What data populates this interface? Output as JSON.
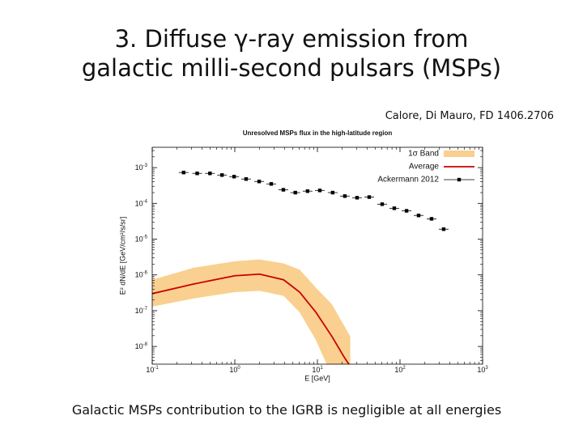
{
  "slide": {
    "title_lines": [
      "3. Diffuse γ-ray emission from",
      "galactic milli-second pulsars (MSPs)"
    ],
    "citation": "Calore, Di Mauro, FD 1406.2706",
    "caption": "Galactic MSPs contribution to the IGRB is negligible at all energies"
  },
  "chart_data": {
    "type": "line",
    "title": "Unresolved MSPs flux in the high-latitude region",
    "xlabel": "E [GeV]",
    "ylabel": "E² dN/dE [GeV/cm²/s/sr]",
    "xscale": "log",
    "yscale": "log",
    "xlim": [
      0.1,
      1000
    ],
    "ylim": [
      3.2e-09,
      0.0037
    ],
    "xticks": [
      {
        "value": 0.1,
        "label": "10",
        "exponent": "-1"
      },
      {
        "value": 1,
        "label": "10",
        "exponent": "0"
      },
      {
        "value": 10,
        "label": "10",
        "exponent": "1"
      },
      {
        "value": 100,
        "label": "10",
        "exponent": "2"
      },
      {
        "value": 1000,
        "label": "10",
        "exponent": "3"
      }
    ],
    "yticks": [
      {
        "value": 1e-08,
        "label": "10",
        "exponent": "-8"
      },
      {
        "value": 1e-07,
        "label": "10",
        "exponent": "-7"
      },
      {
        "value": 1e-06,
        "label": "10",
        "exponent": "-6"
      },
      {
        "value": 1e-05,
        "label": "10",
        "exponent": "-5"
      },
      {
        "value": 0.0001,
        "label": "10",
        "exponent": "-4"
      },
      {
        "value": 0.001,
        "label": "10",
        "exponent": "-3"
      }
    ],
    "legend": "top-right",
    "series": [
      {
        "name": "1σ Band",
        "style": "band",
        "color": "#f9d08f",
        "x": [
          0.1,
          0.32,
          1,
          2,
          3.9,
          6.1,
          9.6,
          15,
          25
        ],
        "values": [
          7.3e-07,
          1.6e-06,
          2.4e-06,
          2.7e-06,
          2.1e-06,
          1.4e-06,
          4.4e-07,
          1.5e-07,
          1.9e-08
        ],
        "lower": [
          1.3e-07,
          2.2e-07,
          3.3e-07,
          3.6e-07,
          2.6e-07,
          9e-08,
          1.5e-08,
          1.5e-09,
          1e-10
        ]
      },
      {
        "name": "Average",
        "style": "line",
        "color": "#cc0000",
        "x": [
          0.1,
          0.32,
          1,
          2,
          3.9,
          6.1,
          9.6,
          15,
          21,
          24
        ],
        "values": [
          3e-07,
          5.6e-07,
          9.5e-07,
          1.05e-06,
          7.3e-07,
          3.3e-07,
          9e-08,
          1.9e-08,
          5.1e-09,
          3.2e-09
        ]
      },
      {
        "name": "Ackermann 2012",
        "style": "points",
        "color": "#000000",
        "x": [
          0.24,
          0.35,
          0.5,
          0.7,
          0.98,
          1.37,
          1.97,
          2.76,
          3.87,
          5.4,
          7.6,
          10.7,
          15.3,
          21.5,
          30.2,
          42.4,
          60.8,
          85.3,
          120,
          168,
          241,
          338
        ],
        "values": [
          0.00073,
          0.00069,
          0.00069,
          0.00062,
          0.00056,
          0.00048,
          0.00041,
          0.00035,
          0.00024,
          0.0002,
          0.00022,
          0.00023,
          0.0002,
          0.00016,
          0.000144,
          0.00015,
          9.5e-05,
          7.3e-05,
          6.2e-05,
          4.6e-05,
          3.7e-05,
          1.9e-05
        ]
      }
    ]
  }
}
